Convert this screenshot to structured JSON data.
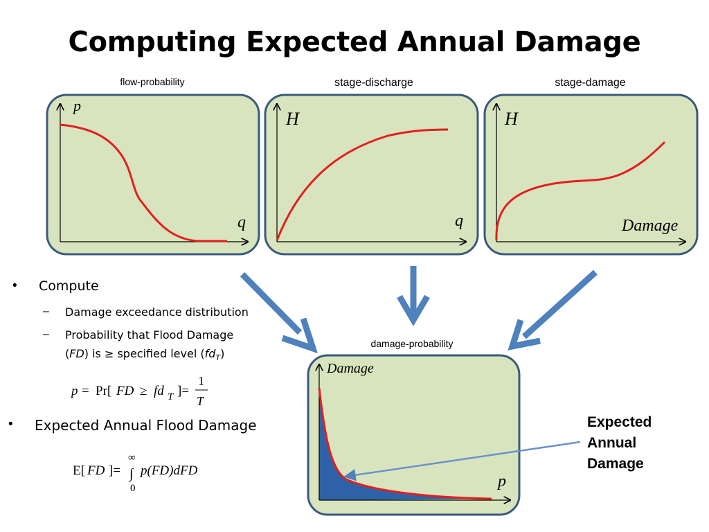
{
  "title": "Computing Expected Annual Damage",
  "panels": {
    "flow_probability": {
      "label": "flow-probability",
      "y_axis": "p",
      "x_axis": "q"
    },
    "stage_discharge": {
      "label": "stage-discharge",
      "y_axis": "H",
      "x_axis": "q"
    },
    "stage_damage": {
      "label": "stage-damage",
      "y_axis": "H",
      "x_axis": "Damage"
    },
    "damage_probability": {
      "label": "damage-probability",
      "y_axis": "Damage",
      "x_axis": "p"
    }
  },
  "bullets": {
    "compute": "Compute",
    "sub1": "Damage exceedance distribution",
    "sub2_line1": "Probability that Flood Damage",
    "sub2_open": "(",
    "sub2_fd": "FD",
    "sub2_mid": ") is ≥ specified level (",
    "sub2_fdt": "fd",
    "sub2_t": "T",
    "sub2_close": ")",
    "expected": "Expected Annual Flood Damage"
  },
  "formula1": {
    "p": "p",
    "eq": "=",
    "pr": "Pr[",
    "fd": "FD",
    "ge": "≥",
    "fdt": "fd",
    "t": "T",
    "close": "]=",
    "num": "1",
    "den": "T"
  },
  "formula2": {
    "e": "E[",
    "fd": "FD",
    "close": "]=",
    "upper": "∞",
    "integral": "∫",
    "lower": "0",
    "body": "p(FD)dFD"
  },
  "ead_label": {
    "line1": "Expected",
    "line2": "Annual",
    "line3": "Damage"
  },
  "colors": {
    "panel_fill": "#d7e4bd",
    "panel_border": "#3a5a7c",
    "curve": "#e41e1e",
    "arrow": "#4f81bd",
    "area_fill": "#2e62a8"
  }
}
